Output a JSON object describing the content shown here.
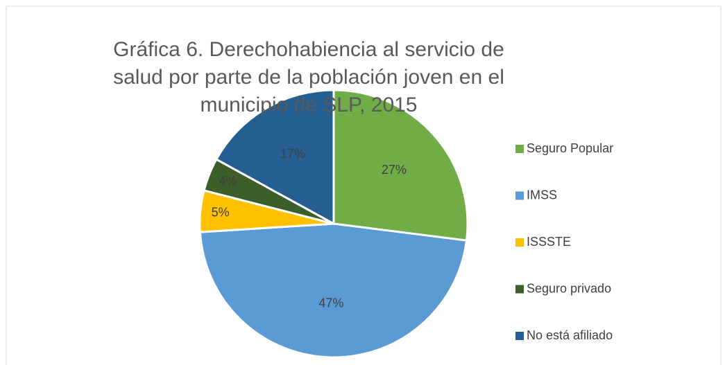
{
  "chart_data": {
    "type": "pie",
    "title": "Gráfica 6. Derechohabiencia al servicio de salud por parte de la población joven en el municipio de SLP, 2015",
    "categories": [
      "Seguro Popular",
      "IMSS",
      "ISSSTE",
      "Seguro privado",
      "No está afiliado"
    ],
    "values": [
      27,
      47,
      5,
      4,
      17
    ],
    "value_labels": [
      "27%",
      "47%",
      "5%",
      "4%",
      "17%"
    ],
    "colors": [
      "#70ad47",
      "#5b9bd5",
      "#ffc000",
      "#3b5e2b",
      "#255e91"
    ],
    "legend": "right"
  }
}
